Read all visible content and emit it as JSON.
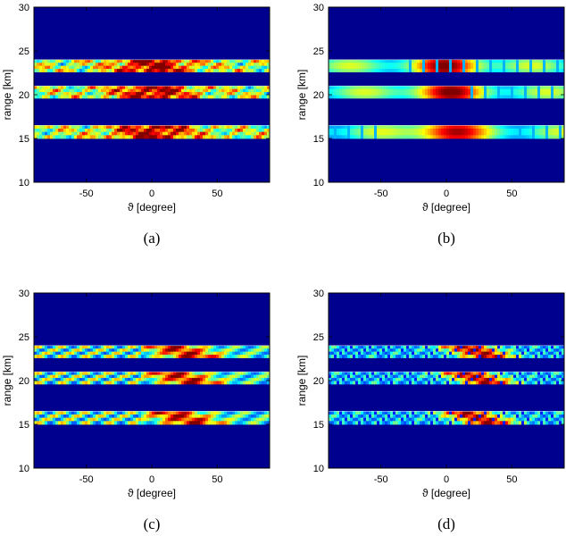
{
  "figure": {
    "panels": [
      {
        "caption": "(a)"
      },
      {
        "caption": "(b)"
      },
      {
        "caption": "(c)"
      },
      {
        "caption": "(d)"
      }
    ]
  },
  "colors": {
    "background_low": "#00008f",
    "band_mid": "#4fd0c8",
    "band_high": "#ffd400",
    "band_peak": "#d10000",
    "frame": "#000000"
  },
  "chart_data": [
    {
      "type": "heatmap",
      "panel": "(a)",
      "xlabel": "ϑ [degree]",
      "ylabel": "range [km]",
      "xlim": [
        -90,
        90
      ],
      "ylim": [
        10,
        30
      ],
      "xticks": [
        -50,
        0,
        50
      ],
      "xtick_labels": [
        "-50",
        "0",
        "50"
      ],
      "yticks": [
        10,
        15,
        20,
        25,
        30
      ],
      "ytick_labels": [
        "10",
        "15",
        "20",
        "25",
        "30"
      ],
      "colormap": "jet",
      "bands": [
        {
          "range_min": 15.0,
          "range_max": 16.5
        },
        {
          "range_min": 19.6,
          "range_max": 21.0
        },
        {
          "range_min": 22.6,
          "range_max": 24.0
        }
      ],
      "pattern": "mottled",
      "peak_angle": 0
    },
    {
      "type": "heatmap",
      "panel": "(b)",
      "xlabel": "ϑ [degree]",
      "ylabel": "range [km]",
      "xlim": [
        -90,
        90
      ],
      "ylim": [
        10,
        30
      ],
      "xticks": [
        -50,
        0,
        50
      ],
      "xtick_labels": [
        "-50",
        "0",
        "50"
      ],
      "yticks": [
        10,
        15,
        20,
        25,
        30
      ],
      "ytick_labels": [
        "10",
        "15",
        "20",
        "25",
        "30"
      ],
      "colormap": "jet",
      "bands": [
        {
          "range_min": 15.0,
          "range_max": 16.5
        },
        {
          "range_min": 19.6,
          "range_max": 21.0
        },
        {
          "range_min": 22.6,
          "range_max": 24.0
        }
      ],
      "pattern": "smooth",
      "peak_angle": 0
    },
    {
      "type": "heatmap",
      "panel": "(c)",
      "xlabel": "ϑ [degree]",
      "ylabel": "range [km]",
      "xlim": [
        -90,
        90
      ],
      "ylim": [
        10,
        30
      ],
      "xticks": [
        -50,
        0,
        50
      ],
      "xtick_labels": [
        "-50",
        "0",
        "50"
      ],
      "yticks": [
        10,
        15,
        20,
        25,
        30
      ],
      "ytick_labels": [
        "10",
        "15",
        "20",
        "25",
        "30"
      ],
      "colormap": "jet",
      "bands": [
        {
          "range_min": 15.0,
          "range_max": 16.5
        },
        {
          "range_min": 19.6,
          "range_max": 21.0
        },
        {
          "range_min": 22.6,
          "range_max": 24.0
        }
      ],
      "pattern": "striated",
      "peak_angle": 10
    },
    {
      "type": "heatmap",
      "panel": "(d)",
      "xlabel": "ϑ [degree]",
      "ylabel": "range [km]",
      "xlim": [
        -90,
        90
      ],
      "ylim": [
        10,
        30
      ],
      "xticks": [
        -50,
        0,
        50
      ],
      "xtick_labels": [
        "-50",
        "0",
        "50"
      ],
      "yticks": [
        10,
        15,
        20,
        25,
        30
      ],
      "ytick_labels": [
        "10",
        "15",
        "20",
        "25",
        "30"
      ],
      "colormap": "jet",
      "bands": [
        {
          "range_min": 15.0,
          "range_max": 16.5
        },
        {
          "range_min": 19.6,
          "range_max": 21.0
        },
        {
          "range_min": 22.6,
          "range_max": 24.0
        }
      ],
      "pattern": "striated-fine",
      "peak_angle": 10
    }
  ]
}
